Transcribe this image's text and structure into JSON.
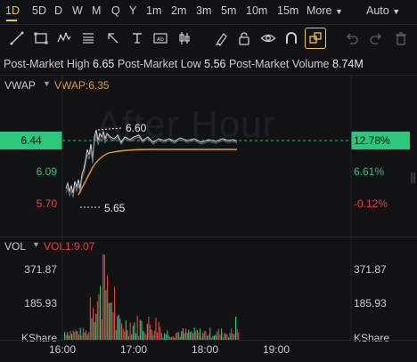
{
  "timeframes": [
    {
      "label": "1D",
      "active": true
    },
    {
      "label": "5D"
    },
    {
      "label": "D"
    },
    {
      "label": "W"
    },
    {
      "label": "M"
    },
    {
      "label": "Q"
    },
    {
      "label": "Y"
    },
    {
      "label": "1m"
    },
    {
      "label": "2m"
    },
    {
      "label": "3m"
    },
    {
      "label": "5m"
    },
    {
      "label": "10m"
    },
    {
      "label": "15m"
    }
  ],
  "more_label": "More",
  "auto_label": "Auto",
  "tools": [
    "trend-line-icon",
    "rectangle-icon",
    "wave-icon",
    "fib-icon",
    "arrow-icon",
    "text-icon",
    "price-label-icon",
    "candle-icon",
    "lock-icon",
    "eraser-icon",
    "eye-icon",
    "magnet-icon",
    "layers-icon",
    "undo-icon",
    "redo-icon",
    "delete-icon"
  ],
  "post_market": {
    "high_label": "Post-Market High",
    "high": "6.65",
    "low_label": "Post-Market Low",
    "low": "5.56",
    "volume_label": "Post-Market Volume",
    "volume": "8.74M"
  },
  "price_panel": {
    "indicator": "VWAP",
    "indicator_value": "VWAP:6.35",
    "watermark": "After Hour",
    "current_price": "6.44",
    "current_pct": "12.78%",
    "mid_price": "6.09",
    "mid_pct": "6.61%",
    "low_price": "5.70",
    "low_pct": "-0.12%",
    "high_marker": "6.60",
    "low_marker": "5.65"
  },
  "volume_panel": {
    "indicator": "VOL",
    "indicator_value": "VOL1:9.07",
    "tick_top": "371.87",
    "tick_mid": "185.93",
    "unit": "KShare"
  },
  "time_axis": [
    "16:00",
    "17:00",
    "18:00",
    "19:00"
  ],
  "colors": {
    "up": "#2bc77a",
    "down": "#e9433f",
    "accent": "#f2c84b",
    "vwap": "#e69a2e"
  }
}
